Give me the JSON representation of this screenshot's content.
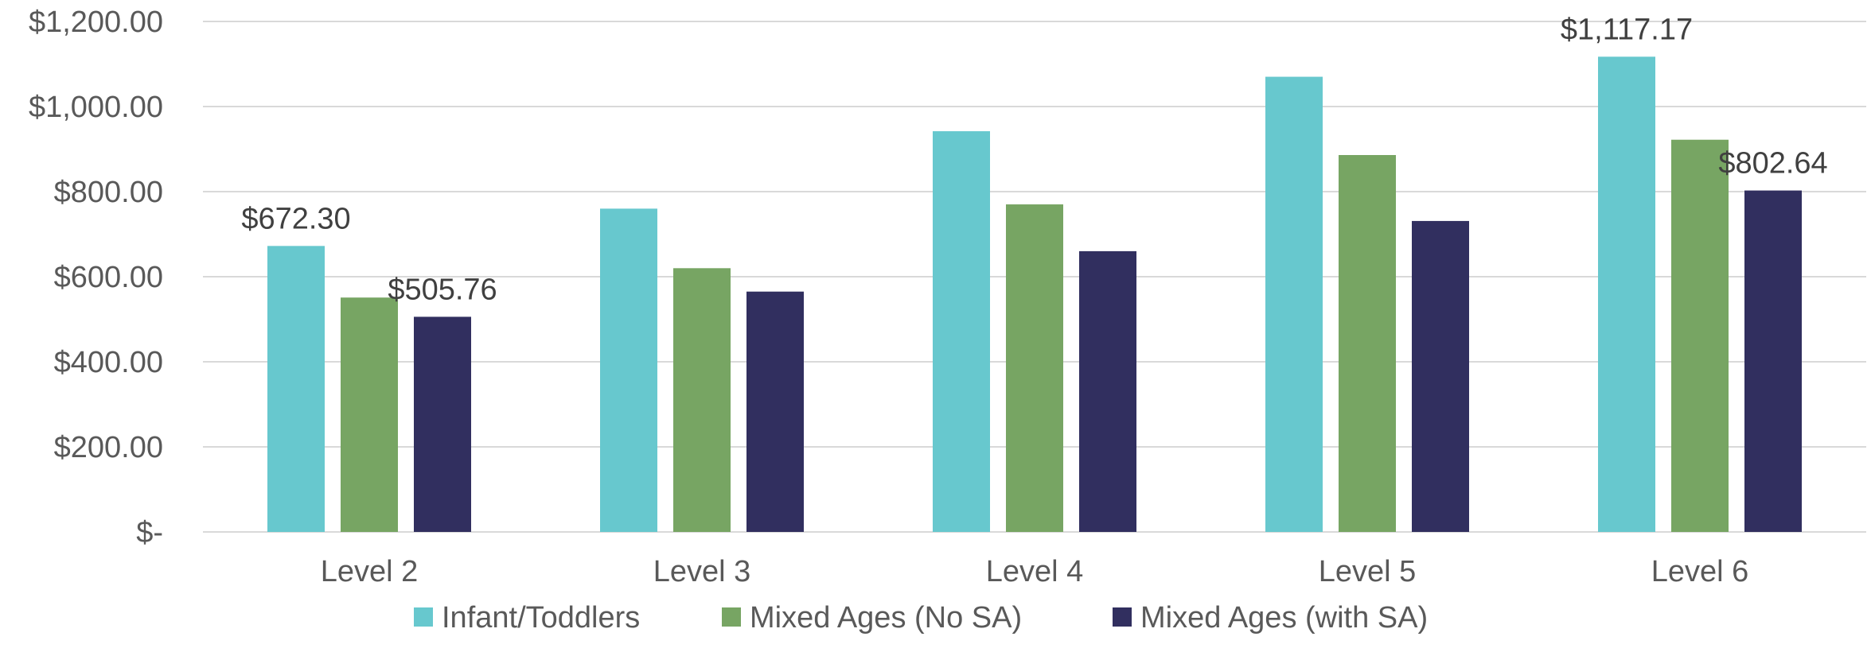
{
  "chart_data": {
    "type": "bar",
    "title": "",
    "xlabel": "",
    "ylabel": "",
    "categories": [
      "Level 2",
      "Level 3",
      "Level 4",
      "Level 5",
      "Level 6"
    ],
    "series": [
      {
        "name": "Infant/Toddlers",
        "color": "#67c8ce",
        "values": [
          672.3,
          760,
          942,
          1070,
          1117.17
        ]
      },
      {
        "name": "Mixed Ages (No SA)",
        "color": "#77a563",
        "values": [
          551,
          620,
          770,
          886,
          922
        ]
      },
      {
        "name": "Mixed Ages (with SA)",
        "color": "#312f5f",
        "values": [
          505.76,
          565,
          660,
          731,
          802.64
        ]
      }
    ],
    "ylim": [
      0,
      1200
    ],
    "yticks": [
      0,
      200,
      400,
      600,
      800,
      1000,
      1200
    ],
    "ytick_labels": [
      "$-",
      "$200.00",
      "$400.00",
      "$600.00",
      "$800.00",
      "$1,000.00",
      "$1,200.00"
    ],
    "grid": true,
    "legend_position": "bottom",
    "data_labels": [
      {
        "series": 0,
        "category": 0,
        "text": "$672.30"
      },
      {
        "series": 2,
        "category": 0,
        "text": "$505.76"
      },
      {
        "series": 0,
        "category": 4,
        "text": "$1,117.17"
      },
      {
        "series": 2,
        "category": 4,
        "text": "$802.64"
      }
    ]
  }
}
